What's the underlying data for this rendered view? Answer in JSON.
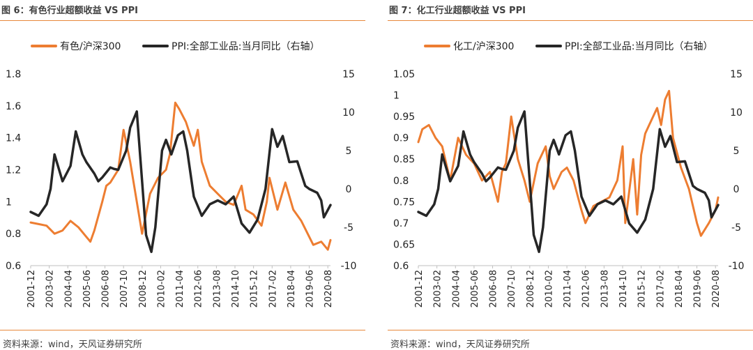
{
  "panels": [
    {
      "title": "图 6：有色行业超额收益 VS PPI",
      "source": "资料来源：wind，天风证券研究所",
      "legend": [
        "有色/沪深300",
        "PPI:全部工业品:当月同比（右轴）"
      ]
    },
    {
      "title": "图 7：化工行业超额收益 VS PPI",
      "source": "资料来源：wind，天风证券研究所",
      "legend": [
        "化工/沪深300",
        "PPI:全部工业品:当月同比（右轴）"
      ]
    }
  ],
  "chart_data": [
    {
      "type": "line",
      "x_tick_labels": [
        "2001-12",
        "2003-02",
        "2004-04",
        "2005-06",
        "2006-08",
        "2007-10",
        "2008-12",
        "2010-02",
        "2011-04",
        "2012-06",
        "2013-08",
        "2014-10",
        "2015-12",
        "2017-02",
        "2018-04",
        "2019-06",
        "2020-08"
      ],
      "xlim": [
        "2001-12",
        "2020-10"
      ],
      "ylim_left": [
        0.6,
        1.8
      ],
      "yticks_left": [
        0.6,
        0.8,
        1,
        1.2,
        1.4,
        1.6,
        1.8
      ],
      "ylim_right": [
        -10,
        15
      ],
      "yticks_right": [
        -10,
        -5,
        0,
        5,
        10,
        15
      ],
      "grid": false,
      "legend_position": "top",
      "colors": {
        "ratio": "#ED7D31",
        "ppi": "#262626"
      },
      "series": [
        {
          "name": "有色/沪深300",
          "axis": "left",
          "x": [
            "2001-12",
            "2002-06",
            "2002-12",
            "2003-06",
            "2003-12",
            "2004-06",
            "2004-12",
            "2005-06",
            "2005-09",
            "2005-12",
            "2006-06",
            "2006-09",
            "2006-12",
            "2007-06",
            "2007-10",
            "2008-03",
            "2008-09",
            "2008-12",
            "2009-06",
            "2009-12",
            "2010-06",
            "2010-09",
            "2011-01",
            "2011-04",
            "2011-09",
            "2012-03",
            "2012-06",
            "2012-09",
            "2013-03",
            "2013-09",
            "2014-03",
            "2014-09",
            "2015-03",
            "2015-06",
            "2015-12",
            "2016-06",
            "2016-10",
            "2016-12",
            "2017-03",
            "2017-06",
            "2017-12",
            "2018-06",
            "2018-12",
            "2019-06",
            "2019-09",
            "2020-03",
            "2020-08",
            "2020-10"
          ],
          "values": [
            0.87,
            0.86,
            0.85,
            0.8,
            0.82,
            0.88,
            0.84,
            0.78,
            0.75,
            0.82,
            1.0,
            1.1,
            1.12,
            1.2,
            1.45,
            1.25,
            0.95,
            0.8,
            1.05,
            1.15,
            1.2,
            1.3,
            1.62,
            1.58,
            1.5,
            1.35,
            1.45,
            1.25,
            1.1,
            1.05,
            1.0,
            0.98,
            1.1,
            0.95,
            0.92,
            0.85,
            1.0,
            1.15,
            1.05,
            0.95,
            1.12,
            0.95,
            0.88,
            0.78,
            0.73,
            0.75,
            0.7,
            0.76
          ]
        },
        {
          "name": "PPI:全部工业品:当月同比（右轴）",
          "axis": "right",
          "x": [
            "2001-12",
            "2002-06",
            "2002-12",
            "2003-03",
            "2003-06",
            "2003-12",
            "2004-06",
            "2004-10",
            "2005-03",
            "2005-06",
            "2005-12",
            "2006-03",
            "2006-06",
            "2006-12",
            "2007-03",
            "2007-06",
            "2007-12",
            "2008-03",
            "2008-08",
            "2008-12",
            "2009-03",
            "2009-07",
            "2009-10",
            "2010-03",
            "2010-06",
            "2010-10",
            "2011-03",
            "2011-07",
            "2011-10",
            "2012-03",
            "2012-09",
            "2013-03",
            "2013-09",
            "2014-03",
            "2014-09",
            "2015-03",
            "2015-09",
            "2016-03",
            "2016-09",
            "2017-02",
            "2017-06",
            "2017-10",
            "2018-03",
            "2018-09",
            "2019-03",
            "2019-06",
            "2019-12",
            "2020-03",
            "2020-05",
            "2020-10"
          ],
          "values": [
            -3.0,
            -3.5,
            -2.0,
            0,
            4.5,
            1.0,
            3.0,
            7.5,
            4.5,
            3.5,
            2.0,
            1.0,
            1.5,
            2.8,
            2.6,
            2.5,
            5.0,
            8.0,
            10.1,
            1.0,
            -6.0,
            -8.2,
            -5.0,
            5.0,
            6.4,
            4.5,
            7.0,
            7.5,
            5.0,
            -1.0,
            -3.5,
            -2.0,
            -1.5,
            -2.0,
            -1.0,
            -4.5,
            -5.7,
            -4.0,
            0,
            7.8,
            5.5,
            6.9,
            3.5,
            3.6,
            0.4,
            0,
            -0.5,
            -1.5,
            -3.7,
            -2.1
          ]
        }
      ]
    },
    {
      "type": "line",
      "x_tick_labels": [
        "2001-12",
        "2003-02",
        "2004-04",
        "2005-06",
        "2006-08",
        "2007-10",
        "2008-12",
        "2010-02",
        "2011-04",
        "2012-06",
        "2013-08",
        "2014-10",
        "2015-12",
        "2017-02",
        "2018-04",
        "2019-06",
        "2020-08"
      ],
      "xlim": [
        "2001-12",
        "2020-10"
      ],
      "ylim_left": [
        0.6,
        1.05
      ],
      "yticks_left": [
        0.6,
        0.65,
        0.7,
        0.75,
        0.8,
        0.85,
        0.9,
        0.95,
        1,
        1.05
      ],
      "ylim_right": [
        -10,
        15
      ],
      "yticks_right": [
        -10,
        -5,
        0,
        5,
        10,
        15
      ],
      "grid": false,
      "legend_position": "top",
      "colors": {
        "ratio": "#ED7D31",
        "ppi": "#262626"
      },
      "series": [
        {
          "name": "化工/沪深300",
          "axis": "left",
          "x": [
            "2001-12",
            "2002-03",
            "2002-08",
            "2003-01",
            "2003-06",
            "2003-12",
            "2004-06",
            "2004-12",
            "2005-06",
            "2005-12",
            "2006-06",
            "2006-12",
            "2007-03",
            "2007-06",
            "2007-10",
            "2008-03",
            "2008-08",
            "2008-12",
            "2009-06",
            "2009-12",
            "2010-03",
            "2010-06",
            "2010-12",
            "2011-04",
            "2011-09",
            "2012-03",
            "2012-06",
            "2012-12",
            "2013-06",
            "2013-12",
            "2014-06",
            "2014-10",
            "2014-12",
            "2015-06",
            "2015-09",
            "2015-12",
            "2016-03",
            "2016-06",
            "2016-12",
            "2017-03",
            "2017-06",
            "2017-09",
            "2017-12",
            "2018-06",
            "2018-12",
            "2019-06",
            "2019-09",
            "2020-03",
            "2020-08",
            "2020-10"
          ],
          "values": [
            0.89,
            0.92,
            0.93,
            0.9,
            0.88,
            0.8,
            0.9,
            0.86,
            0.84,
            0.8,
            0.82,
            0.75,
            0.82,
            0.84,
            0.95,
            0.85,
            0.8,
            0.75,
            0.84,
            0.88,
            0.81,
            0.78,
            0.82,
            0.83,
            0.8,
            0.73,
            0.7,
            0.74,
            0.75,
            0.76,
            0.8,
            0.88,
            0.7,
            0.85,
            0.72,
            0.86,
            0.91,
            0.93,
            0.97,
            0.93,
            0.99,
            1.01,
            0.9,
            0.83,
            0.78,
            0.7,
            0.67,
            0.7,
            0.73,
            0.76
          ]
        },
        {
          "name": "PPI:全部工业品:当月同比（右轴）",
          "axis": "right",
          "x": [
            "2001-12",
            "2002-06",
            "2002-12",
            "2003-03",
            "2003-06",
            "2003-12",
            "2004-06",
            "2004-10",
            "2005-03",
            "2005-06",
            "2005-12",
            "2006-03",
            "2006-06",
            "2006-12",
            "2007-03",
            "2007-06",
            "2007-12",
            "2008-03",
            "2008-08",
            "2008-12",
            "2009-03",
            "2009-07",
            "2009-10",
            "2010-03",
            "2010-06",
            "2010-10",
            "2011-03",
            "2011-07",
            "2011-10",
            "2012-03",
            "2012-09",
            "2013-03",
            "2013-09",
            "2014-03",
            "2014-09",
            "2015-03",
            "2015-09",
            "2016-03",
            "2016-09",
            "2017-02",
            "2017-06",
            "2017-10",
            "2018-03",
            "2018-09",
            "2019-03",
            "2019-06",
            "2019-12",
            "2020-03",
            "2020-05",
            "2020-10"
          ],
          "values": [
            -3.0,
            -3.5,
            -2.0,
            0,
            4.5,
            1.0,
            3.0,
            7.5,
            4.5,
            3.5,
            2.0,
            1.0,
            1.5,
            2.8,
            2.6,
            2.5,
            5.0,
            8.0,
            10.1,
            1.0,
            -6.0,
            -8.2,
            -5.0,
            5.0,
            6.4,
            4.5,
            7.0,
            7.5,
            5.0,
            -1.0,
            -3.5,
            -2.0,
            -1.5,
            -2.0,
            -1.0,
            -4.5,
            -5.7,
            -4.0,
            0,
            7.8,
            5.5,
            6.9,
            3.5,
            3.6,
            0.4,
            0,
            -0.5,
            -1.5,
            -3.7,
            -2.1
          ]
        }
      ]
    }
  ]
}
